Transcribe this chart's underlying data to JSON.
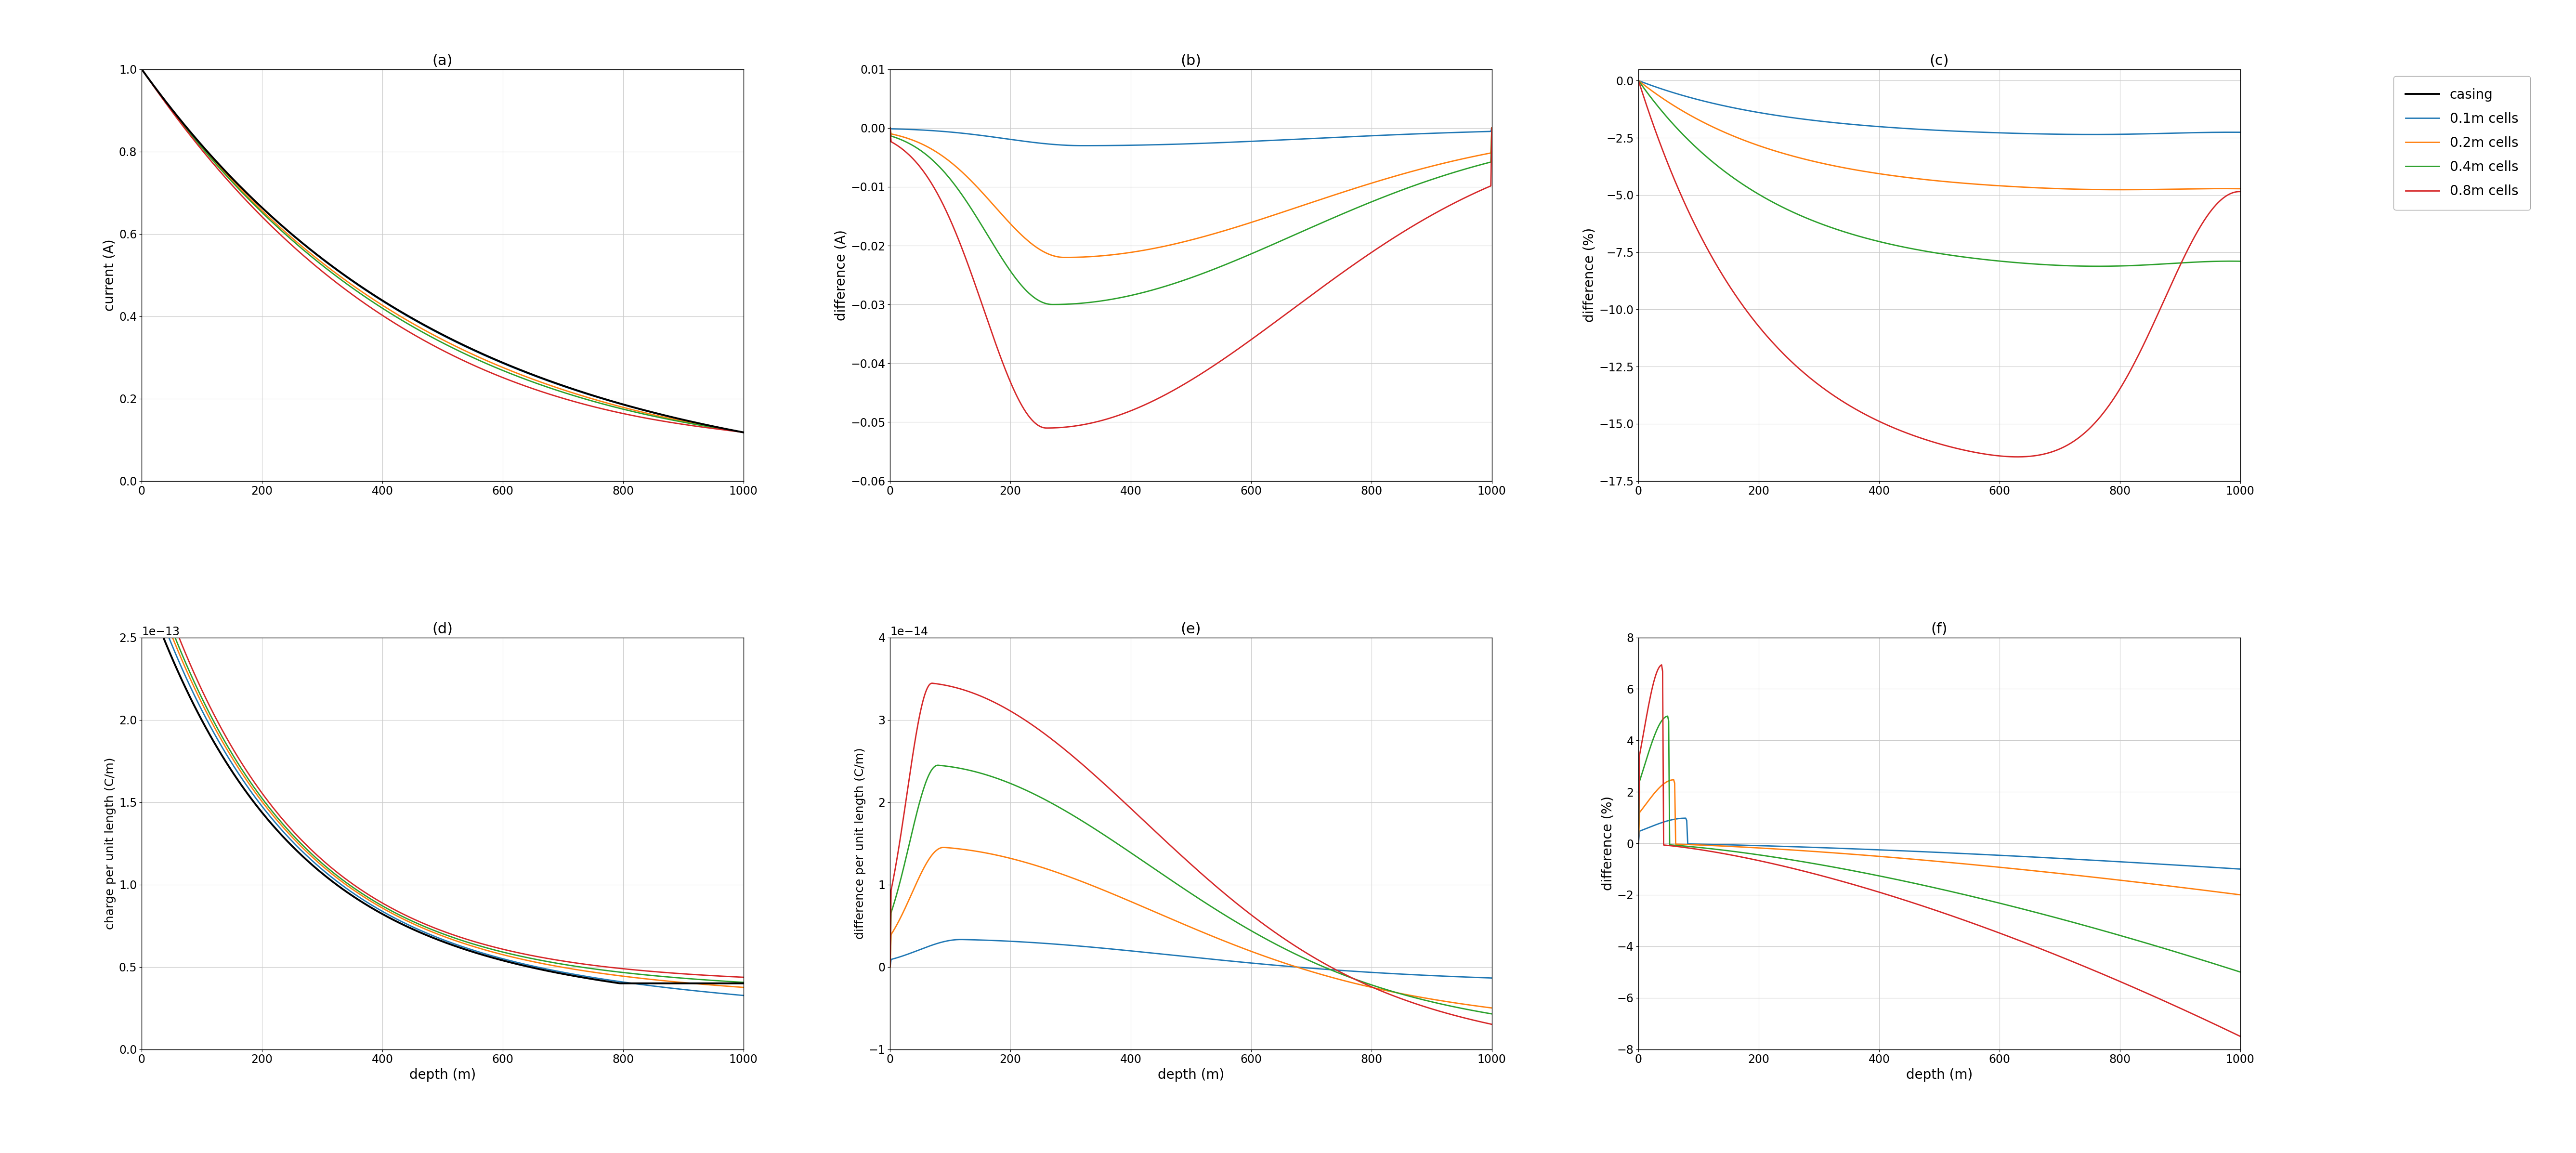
{
  "colors": {
    "casing": "#000000",
    "blue": "#1f77b4",
    "orange": "#ff7f0e",
    "green": "#2ca02c",
    "red": "#d62728"
  },
  "legend_labels": [
    "casing",
    "0.1m cells",
    "0.2m cells",
    "0.4m cells",
    "0.8m cells"
  ],
  "subplot_titles": [
    "(a)",
    "(b)",
    "(c)",
    "(d)",
    "(e)",
    "(f)"
  ],
  "xlabel": "depth (m)",
  "ylabels": [
    "current (A)",
    "difference (A)",
    "difference (%)",
    "charge per unit length (C/m)",
    "difference per unit length (C/m)",
    "difference (%)"
  ],
  "xlim": [
    0,
    1000
  ],
  "ylim_a": [
    0.0,
    1.0
  ],
  "ylim_b": [
    -0.06,
    0.01
  ],
  "ylim_c": [
    -17.5,
    0.5
  ],
  "ylim_d": [
    0.0,
    2.5e-13
  ],
  "ylim_e": [
    -1e-14,
    4e-14
  ],
  "ylim_f": [
    -8.0,
    8.0
  ],
  "n_points": 600
}
